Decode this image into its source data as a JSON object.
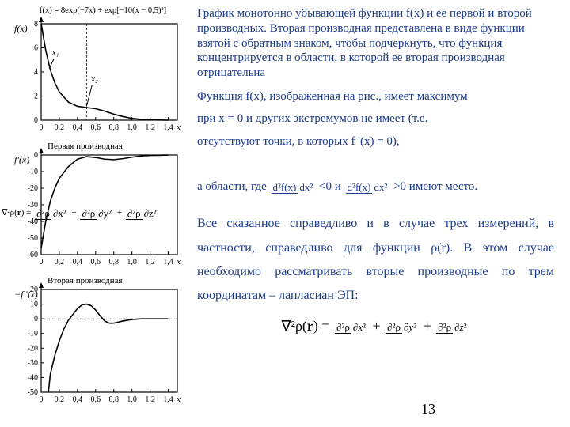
{
  "page_number": "13",
  "colors": {
    "text_blue": "#1b3a8a",
    "axis": "#000000",
    "curve": "#000000",
    "background": "#ffffff"
  },
  "caption": "График монотонно убывающей функции f(x) и ее первой и второй производных. Вторая производная представлена в виде функции взятой с обратным знаком, чтобы подчеркнуть, что функция концентрируется в области, в которой ее вторая производная отрицательна",
  "para1_a": "Функция f(x), изображенная на рис., имеет максимум",
  "para1_b": "при x = 0 и других экстремумов не имеет (т.е.",
  "para1_c": "отсутствуют точки, в которых f '(x) = 0),",
  "para1_d_pre": "а области, где ",
  "para1_d_mid": " <0 и ",
  "para1_d_post": " >0 имеют место.",
  "para2": "Все сказанное справедливо и в случае трех измерений, в частности, справедливо для функции ρ(r). В этом случае необходимо рассматривать вторые производные по трем координатам – лапласиан ЭП:",
  "equation": {
    "lhs": "∇²ρ(r) =",
    "terms": [
      "∂²ρ/∂x²",
      "∂²ρ/∂y²",
      "∂²ρ/∂z²"
    ]
  },
  "aside": "∇²ρ(r) = ∂²ρ/∂x² + ∂²ρ/∂y² + ∂²ρ/∂z²",
  "charts": {
    "formula_header": "f(x) = 8exp(−7x) + exp[−10(x − 0,5)²]",
    "xaxis": {
      "min": 0,
      "max": 1.5,
      "ticks": [
        "0",
        "0,2",
        "0,4",
        "0,6",
        "0,8",
        "1,0",
        "1,2",
        "1,4"
      ],
      "label": "x"
    },
    "panel1": {
      "ylabel": "f(x)",
      "ymin": 0,
      "ymax": 8,
      "yticks": [
        0,
        2,
        4,
        6,
        8
      ],
      "annotations": [
        "x₁",
        "x₂"
      ],
      "vline_at": 0.5,
      "data": [
        [
          0,
          8
        ],
        [
          0.05,
          5.8
        ],
        [
          0.1,
          4.2
        ],
        [
          0.15,
          3.1
        ],
        [
          0.2,
          2.35
        ],
        [
          0.3,
          1.5
        ],
        [
          0.4,
          1.15
        ],
        [
          0.5,
          1.05
        ],
        [
          0.6,
          0.95
        ],
        [
          0.7,
          0.75
        ],
        [
          0.8,
          0.5
        ],
        [
          0.9,
          0.3
        ],
        [
          1.0,
          0.15
        ],
        [
          1.1,
          0.07
        ],
        [
          1.2,
          0.03
        ],
        [
          1.4,
          0.0
        ]
      ]
    },
    "panel2": {
      "title": "Первая производная",
      "ylabel": "f'(x)",
      "ymin": -60,
      "ymax": 0,
      "yticks": [
        0,
        -10,
        -20,
        -30,
        -40,
        -50,
        -60
      ],
      "data": [
        [
          0,
          -56
        ],
        [
          0.05,
          -40
        ],
        [
          0.1,
          -28
        ],
        [
          0.15,
          -20
        ],
        [
          0.2,
          -14
        ],
        [
          0.3,
          -7
        ],
        [
          0.4,
          -2.5
        ],
        [
          0.5,
          -1
        ],
        [
          0.6,
          -1.5
        ],
        [
          0.7,
          -2.5
        ],
        [
          0.8,
          -2.8
        ],
        [
          0.9,
          -2.2
        ],
        [
          1.0,
          -1.3
        ],
        [
          1.1,
          -0.6
        ],
        [
          1.2,
          -0.25
        ],
        [
          1.4,
          -0.02
        ]
      ]
    },
    "panel3": {
      "title": "Вторая производная",
      "ylabel": "−f''(x)",
      "ymin": -50,
      "ymax": 20,
      "yticks": [
        20,
        10,
        0,
        -10,
        -20,
        -30,
        -40,
        -50
      ],
      "data": [
        [
          0.08,
          -50
        ],
        [
          0.1,
          -38
        ],
        [
          0.15,
          -25
        ],
        [
          0.2,
          -15
        ],
        [
          0.25,
          -7
        ],
        [
          0.3,
          -1
        ],
        [
          0.35,
          3
        ],
        [
          0.4,
          7
        ],
        [
          0.45,
          9.5
        ],
        [
          0.5,
          10
        ],
        [
          0.55,
          9
        ],
        [
          0.6,
          6
        ],
        [
          0.65,
          2
        ],
        [
          0.7,
          -1.5
        ],
        [
          0.75,
          -3
        ],
        [
          0.8,
          -3
        ],
        [
          0.9,
          -1.5
        ],
        [
          1.0,
          -0.5
        ],
        [
          1.1,
          0
        ],
        [
          1.4,
          0
        ]
      ]
    }
  }
}
